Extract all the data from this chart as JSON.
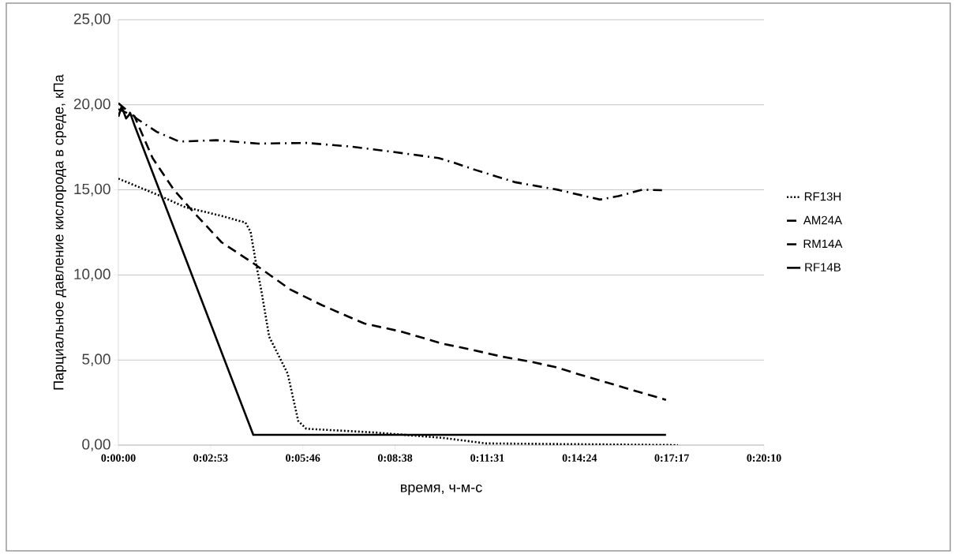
{
  "chart_data": {
    "type": "line",
    "xlabel": "время, ч-м-с",
    "ylabel": "Парциальное давление кислорода в среде, кПа",
    "xlim": [
      0,
      0.336
    ],
    "ylim": [
      0,
      25
    ],
    "xticks": [
      {
        "value": 0,
        "label": "0:00:00"
      },
      {
        "value": 0.048,
        "label": "0:02:53"
      },
      {
        "value": 0.096,
        "label": "0:05:46"
      },
      {
        "value": 0.144,
        "label": "0:08:38"
      },
      {
        "value": 0.192,
        "label": "0:11:31"
      },
      {
        "value": 0.24,
        "label": "0:14:24"
      },
      {
        "value": 0.288,
        "label": "0:17:17"
      },
      {
        "value": 0.336,
        "label": "0:20:10"
      }
    ],
    "yticks": [
      {
        "value": 0,
        "label": "0,00"
      },
      {
        "value": 5,
        "label": "5,00"
      },
      {
        "value": 10,
        "label": "10,00"
      },
      {
        "value": 15,
        "label": "15,00"
      },
      {
        "value": 20,
        "label": "20,00"
      },
      {
        "value": 25,
        "label": "25,00"
      }
    ],
    "grid": "y",
    "legend": "right",
    "series": [
      {
        "name": "RF13H",
        "color": "#000000",
        "line_style": "dotted",
        "x": [
          0,
          0.0207,
          0.0344,
          0.0537,
          0.0661,
          0.0688,
          0.0716,
          0.0743,
          0.0785,
          0.084,
          0.0881,
          0.0936,
          0.0978,
          0.1334,
          0.1693,
          0.1912,
          0.2912
        ],
        "values": [
          15.66,
          14.7,
          14.0,
          13.47,
          13.08,
          12.54,
          10.69,
          9.14,
          6.36,
          5.13,
          4.2,
          1.42,
          0.96,
          0.74,
          0.42,
          0.1,
          0.0
        ]
      },
      {
        "name": "AM24A",
        "color": "#000000",
        "line_style": "dashdot",
        "x": [
          0,
          0.0096,
          0.02,
          0.0317,
          0.0509,
          0.073,
          0.0978,
          0.1198,
          0.1418,
          0.1666,
          0.1748,
          0.1859,
          0.2065,
          0.2285,
          0.2506,
          0.2602,
          0.2726,
          0.2829
        ],
        "values": [
          20.1,
          19.18,
          18.41,
          17.84,
          17.92,
          17.72,
          17.76,
          17.56,
          17.25,
          16.87,
          16.59,
          16.17,
          15.45,
          15.01,
          14.43,
          14.63,
          15.01,
          14.98
        ]
      },
      {
        "name": "RM14A",
        "color": "#000000",
        "line_style": "dashed",
        "x": [
          0,
          0.0083,
          0.0178,
          0.0289,
          0.0372,
          0.0537,
          0.0702,
          0.0895,
          0.106,
          0.1281,
          0.1473,
          0.168,
          0.1845,
          0.1996,
          0.2134,
          0.2272,
          0.2409,
          0.2547,
          0.2685,
          0.285
        ],
        "values": [
          19.74,
          19.34,
          16.87,
          15.0,
          13.93,
          11.92,
          10.69,
          9.14,
          8.22,
          7.14,
          6.67,
          5.98,
          5.59,
          5.2,
          4.93,
          4.59,
          4.12,
          3.66,
          3.2,
          2.66
        ]
      },
      {
        "name": "RF14B",
        "color": "#000000",
        "line_style": "solid",
        "x": [
          0,
          0.0017,
          0.004,
          0.0062,
          0.0087,
          0.0702,
          0.285
        ],
        "values": [
          19.3,
          19.9,
          19.2,
          19.5,
          18.7,
          0.6,
          0.6
        ]
      }
    ]
  }
}
